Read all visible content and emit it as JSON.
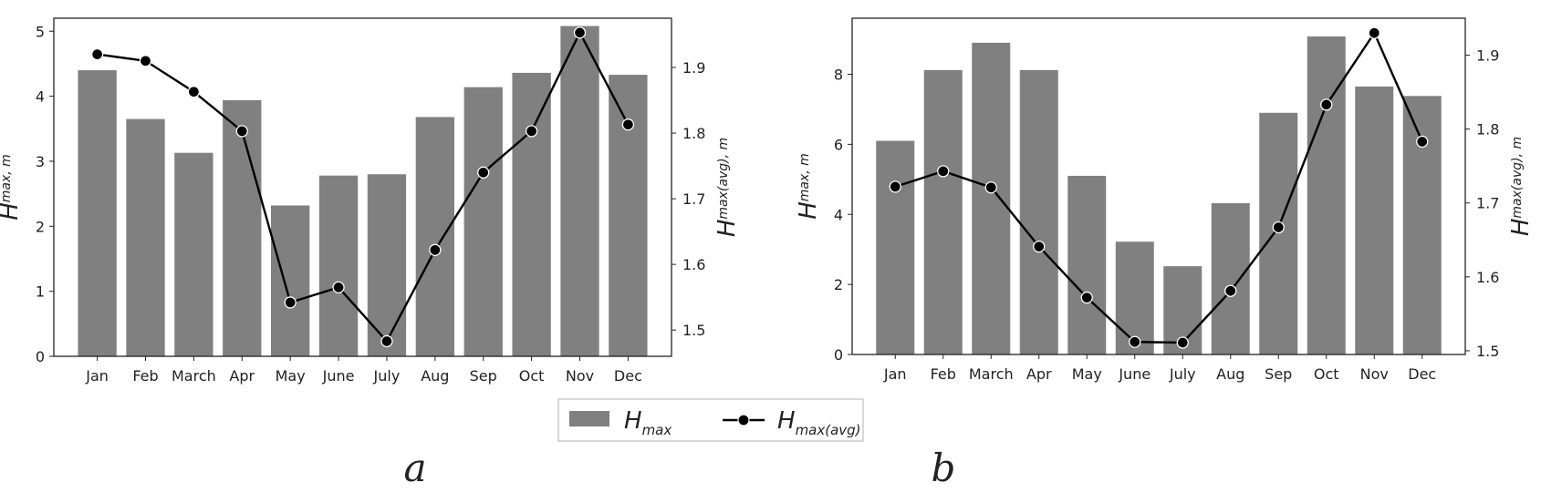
{
  "legend": {
    "bar_label": "H",
    "bar_sub": "max",
    "line_label": "H",
    "line_sub": "max(avg)"
  },
  "colors": {
    "bar": "#808080",
    "line": "#000000",
    "marker_edge": "#ffffff"
  },
  "chart_data": [
    {
      "type": "bar",
      "panel_label": "a",
      "categories": [
        "Jan",
        "Feb",
        "March",
        "Apr",
        "May",
        "June",
        "July",
        "Aug",
        "Sep",
        "Oct",
        "Nov",
        "Dec"
      ],
      "ylabel": "H",
      "ylabel_sub": "max, m",
      "ylim": [
        0,
        5.2
      ],
      "yticks": [
        0,
        1,
        2,
        3,
        4,
        5
      ],
      "y2label": "H",
      "y2label_sub": "max(avg), m",
      "y2lim": [
        1.46,
        1.975
      ],
      "y2ticks": [
        1.5,
        1.6,
        1.7,
        1.8,
        1.9
      ],
      "series": [
        {
          "name": "H max",
          "type": "bar",
          "axis": "left",
          "values": [
            4.4,
            3.65,
            3.13,
            3.94,
            2.32,
            2.78,
            2.8,
            3.68,
            4.14,
            4.36,
            5.08,
            4.33
          ]
        },
        {
          "name": "H max(avg)",
          "type": "line",
          "axis": "right",
          "values": [
            1.92,
            1.91,
            1.863,
            1.803,
            1.542,
            1.565,
            1.483,
            1.622,
            1.74,
            1.803,
            1.953,
            1.813
          ]
        }
      ],
      "grid": false,
      "legend_position": "bottom-center"
    },
    {
      "type": "bar",
      "panel_label": "b",
      "categories": [
        "Jan",
        "Feb",
        "March",
        "Apr",
        "May",
        "June",
        "July",
        "Aug",
        "Sep",
        "Oct",
        "Nov",
        "Dec"
      ],
      "ylabel": "H",
      "ylabel_sub": "max, m",
      "ylim": [
        0,
        9.6
      ],
      "yticks": [
        0,
        2,
        4,
        6,
        8
      ],
      "y2label": "H",
      "y2label_sub": "max(avg), m",
      "y2lim": [
        1.495,
        1.95
      ],
      "y2ticks": [
        1.5,
        1.6,
        1.7,
        1.8,
        1.9
      ],
      "series": [
        {
          "name": "H max",
          "type": "bar",
          "axis": "left",
          "values": [
            6.1,
            8.12,
            8.9,
            8.12,
            5.1,
            3.22,
            2.52,
            4.32,
            6.9,
            9.08,
            7.65,
            7.38
          ]
        },
        {
          "name": "H max(avg)",
          "type": "line",
          "axis": "right",
          "values": [
            1.722,
            1.743,
            1.721,
            1.641,
            1.572,
            1.512,
            1.511,
            1.581,
            1.667,
            1.833,
            1.93,
            1.783
          ]
        }
      ],
      "grid": false,
      "legend_position": "bottom-center"
    }
  ]
}
